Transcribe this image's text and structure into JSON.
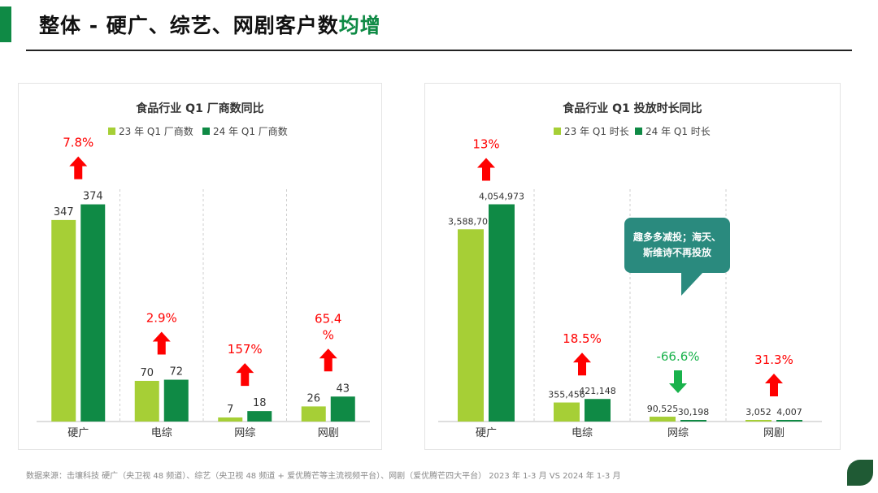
{
  "header": {
    "title_main": "整体 - 硬广、综艺、网剧客户数",
    "title_highlight": "均增"
  },
  "colors": {
    "series23": "#a6cf36",
    "series24": "#0f8a45",
    "up": "#ff0000",
    "down": "#19b24b",
    "callout": "#2a8a7e"
  },
  "chart_data": [
    {
      "type": "bar",
      "title": "食品行业 Q1 厂商数同比",
      "categories": [
        "硬广",
        "电综",
        "网综",
        "网剧"
      ],
      "series": [
        {
          "name": "23 年 Q1 厂商数",
          "values": [
            347,
            70,
            7,
            26
          ]
        },
        {
          "name": "24 年 Q1 厂商数",
          "values": [
            374,
            72,
            18,
            43
          ]
        }
      ],
      "value_labels": [
        [
          "347",
          "374"
        ],
        [
          "70",
          "72"
        ],
        [
          "7",
          "18"
        ],
        [
          "26",
          "43"
        ]
      ],
      "changes": [
        {
          "lines": [
            "7.8%"
          ],
          "direction": "up"
        },
        {
          "lines": [
            "2.9%"
          ],
          "direction": "up"
        },
        {
          "lines": [
            "157%"
          ],
          "direction": "up"
        },
        {
          "lines": [
            "65.4",
            "%"
          ],
          "direction": "up"
        }
      ],
      "ylim": [
        0,
        400
      ],
      "xlabel": "",
      "ylabel": "",
      "legend": "top"
    },
    {
      "type": "bar",
      "title": "食品行业 Q1 投放时长同比",
      "categories": [
        "硬广",
        "电综",
        "网综",
        "网剧"
      ],
      "series": [
        {
          "name": "23 年 Q1 时长",
          "values": [
            3588705,
            355456,
            90525,
            3052
          ]
        },
        {
          "name": "24 年 Q1 时长",
          "values": [
            4054973,
            421148,
            30198,
            4007
          ]
        }
      ],
      "value_labels": [
        [
          "3,588,705",
          "4,054,973"
        ],
        [
          "355,456",
          "421,148"
        ],
        [
          "90,525",
          "30,198"
        ],
        [
          "3,052",
          "4,007"
        ]
      ],
      "changes": [
        {
          "lines": [
            "13%"
          ],
          "direction": "up"
        },
        {
          "lines": [
            "18.5%"
          ],
          "direction": "up"
        },
        {
          "lines": [
            "-66.6%"
          ],
          "direction": "down"
        },
        {
          "lines": [
            "31.3%"
          ],
          "direction": "up"
        }
      ],
      "ylim": [
        0,
        4336000
      ],
      "xlabel": "",
      "ylabel": "",
      "legend": "top"
    }
  ],
  "callout": {
    "line1": "趣多多减投；海天、",
    "line2": "斯维诗不再投放"
  },
  "footnote": "数据来源：击壤科技 硬广（央卫视 48 频道）、综艺（央卫视 48 频道 + 爱优腾芒等主流视频平台）、网剧（爱优腾芒四大平台） 2023 年 1-3 月  VS 2024 年 1-3 月"
}
